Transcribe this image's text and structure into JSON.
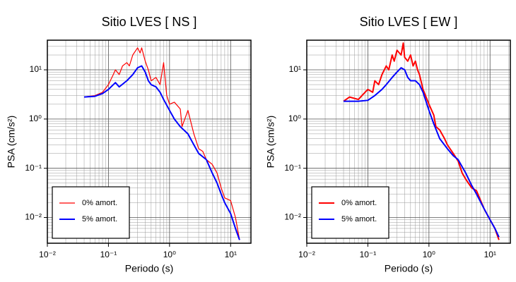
{
  "chart_data": [
    {
      "type": "line",
      "title": "Sitio LVES [ NS ]",
      "x_label": "Periodo (s)",
      "y_label": "PSA (cm/s²)",
      "xscale": "log",
      "yscale": "log",
      "grid": true,
      "legend": "lower left",
      "xlim": [
        0.01,
        21.5
      ],
      "ylim": [
        0.003,
        40
      ],
      "xticks": [
        {
          "value": 0.01,
          "label": "10⁻²"
        },
        {
          "value": 0.1,
          "label": "10⁻¹"
        },
        {
          "value": 1,
          "label": "10⁰"
        },
        {
          "value": 10,
          "label": "10¹"
        }
      ],
      "yticks": [
        {
          "value": 0.01,
          "label": "10⁻²"
        },
        {
          "value": 0.1,
          "label": "10⁻¹"
        },
        {
          "value": 1,
          "label": "10⁰"
        },
        {
          "value": 10,
          "label": "10¹"
        }
      ],
      "series": [
        {
          "name": "0% amort.",
          "color": "#ff0000",
          "width": 1.2,
          "x": [
            0.04,
            0.06,
            0.08,
            0.1,
            0.12,
            0.13,
            0.15,
            0.17,
            0.2,
            0.22,
            0.25,
            0.3,
            0.33,
            0.35,
            0.4,
            0.45,
            0.5,
            0.6,
            0.7,
            0.8,
            0.9,
            1,
            1.2,
            1.5,
            1.6,
            2,
            2.5,
            3,
            3.5,
            4,
            5,
            6,
            7,
            8,
            10,
            12,
            14
          ],
          "values": [
            2.8,
            3.0,
            3.5,
            5,
            8,
            10,
            8,
            12,
            14,
            12,
            20,
            28,
            22,
            28,
            15,
            10,
            6,
            7,
            5,
            14,
            3,
            2,
            2.2,
            1.6,
            0.7,
            1.5,
            0.5,
            0.25,
            0.22,
            0.15,
            0.12,
            0.08,
            0.04,
            0.025,
            0.022,
            0.01,
            0.0035
          ]
        },
        {
          "name": "5% amort.",
          "color": "#0000ff",
          "width": 2,
          "x": [
            0.04,
            0.06,
            0.08,
            0.1,
            0.13,
            0.15,
            0.2,
            0.25,
            0.3,
            0.35,
            0.4,
            0.45,
            0.5,
            0.6,
            0.7,
            0.8,
            1,
            1.2,
            1.5,
            2,
            2.5,
            3,
            4,
            5,
            6,
            7,
            8,
            10,
            12,
            14
          ],
          "values": [
            2.8,
            2.9,
            3.3,
            4,
            5.5,
            4.5,
            6,
            8,
            11,
            12,
            9,
            6,
            5,
            4.5,
            3.5,
            2.5,
            1.5,
            1,
            0.7,
            0.5,
            0.3,
            0.2,
            0.15,
            0.08,
            0.05,
            0.03,
            0.02,
            0.012,
            0.006,
            0.0035
          ]
        }
      ]
    },
    {
      "type": "line",
      "title": "Sitio LVES [ EW ]",
      "x_label": "Periodo (s)",
      "y_label": "PSA (cm/s²)",
      "xscale": "log",
      "yscale": "log",
      "grid": true,
      "legend": "lower left",
      "xlim": [
        0.01,
        21.5
      ],
      "ylim": [
        0.003,
        40
      ],
      "xticks": [
        {
          "value": 0.01,
          "label": "10⁻²"
        },
        {
          "value": 0.1,
          "label": "10⁻¹"
        },
        {
          "value": 1,
          "label": "10⁰"
        },
        {
          "value": 10,
          "label": "10¹"
        }
      ],
      "yticks": [
        {
          "value": 0.01,
          "label": "10⁻²"
        },
        {
          "value": 0.1,
          "label": "10⁻¹"
        },
        {
          "value": 1,
          "label": "10⁰"
        },
        {
          "value": 10,
          "label": "10¹"
        }
      ],
      "series": [
        {
          "name": "0% amort.",
          "color": "#ff0000",
          "width": 2,
          "x": [
            0.04,
            0.05,
            0.07,
            0.08,
            0.1,
            0.12,
            0.13,
            0.15,
            0.17,
            0.2,
            0.22,
            0.25,
            0.27,
            0.3,
            0.35,
            0.38,
            0.4,
            0.45,
            0.5,
            0.55,
            0.6,
            0.65,
            0.7,
            0.8,
            1,
            1.2,
            1.3,
            1.5,
            1.8,
            2,
            2.5,
            3,
            3.5,
            4,
            5,
            6,
            8,
            10,
            12,
            14
          ],
          "values": [
            2.3,
            2.8,
            2.5,
            3,
            4,
            3.5,
            6,
            5,
            8,
            12,
            10,
            20,
            15,
            25,
            20,
            35,
            18,
            15,
            20,
            12,
            15,
            10,
            8,
            4,
            2,
            1.2,
            0.7,
            0.6,
            0.4,
            0.3,
            0.2,
            0.14,
            0.08,
            0.06,
            0.04,
            0.035,
            0.015,
            0.009,
            0.006,
            0.0035
          ]
        },
        {
          "name": "5% amort.",
          "color": "#0000ff",
          "width": 2,
          "x": [
            0.04,
            0.07,
            0.1,
            0.13,
            0.17,
            0.2,
            0.25,
            0.3,
            0.35,
            0.4,
            0.45,
            0.5,
            0.6,
            0.7,
            0.8,
            1,
            1.2,
            1.5,
            2,
            2.5,
            3,
            4,
            5,
            6,
            8,
            10,
            12,
            14
          ],
          "values": [
            2.3,
            2.3,
            2.4,
            3,
            4,
            5,
            7,
            9,
            11,
            10,
            7,
            6,
            6,
            5,
            3.5,
            1.5,
            0.8,
            0.4,
            0.25,
            0.18,
            0.15,
            0.08,
            0.045,
            0.03,
            0.015,
            0.009,
            0.006,
            0.004
          ]
        }
      ]
    }
  ]
}
